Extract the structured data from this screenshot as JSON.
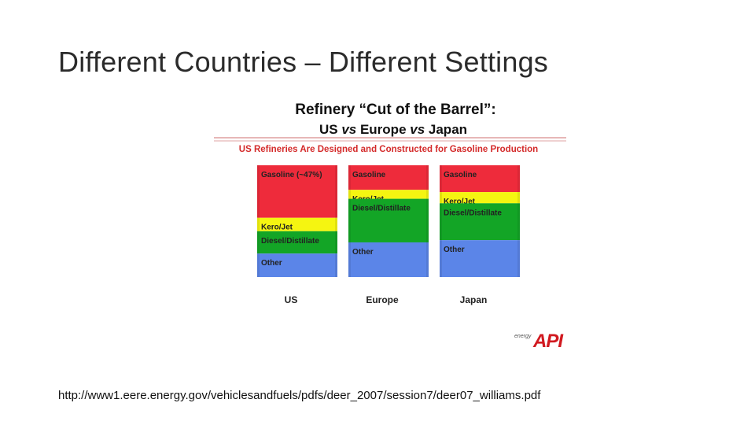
{
  "slide": {
    "title": "Different Countries – Different Settings",
    "footer_url": "http://www1.eere.energy.gov/vehiclesandfuels/pdfs/deer_2007/session7/deer07_williams.pdf"
  },
  "chart_data": {
    "type": "bar",
    "stacked": true,
    "title_line1": "Refinery “Cut of the Barrel”:",
    "title_line2_parts": [
      "US ",
      "vs",
      " Europe ",
      "vs",
      " Japan"
    ],
    "subtitle": "US Refineries Are Designed and Constructed for Gasoline Production",
    "categories": [
      "US",
      "Europe",
      "Japan"
    ],
    "segment_order": [
      "Gasoline",
      "Kero/Jet",
      "Diesel/Distillate",
      "Other"
    ],
    "series": [
      {
        "key": "gasoline",
        "color": "#ee2b3b",
        "values": [
          47,
          22,
          24
        ],
        "labels": [
          "Gasoline (~47%)",
          "Gasoline",
          "Gasoline"
        ]
      },
      {
        "key": "kerojet",
        "color": "#f5f511",
        "values": [
          12,
          8,
          10
        ],
        "labels": [
          "Kero/Jet",
          "Kero/Jet",
          "Kero/Jet"
        ]
      },
      {
        "key": "diesel",
        "color": "#13a526",
        "values": [
          20,
          39,
          33
        ],
        "labels": [
          "Diesel/Distillate",
          "Diesel/Distillate",
          "Diesel/Distillate"
        ]
      },
      {
        "key": "other",
        "color": "#5b85e8",
        "values": [
          21,
          31,
          33
        ],
        "labels": [
          "Other",
          "Other",
          "Other"
        ]
      }
    ],
    "logo": {
      "small_text": "energy",
      "main_text": "API",
      "color": "#d11a20"
    }
  }
}
